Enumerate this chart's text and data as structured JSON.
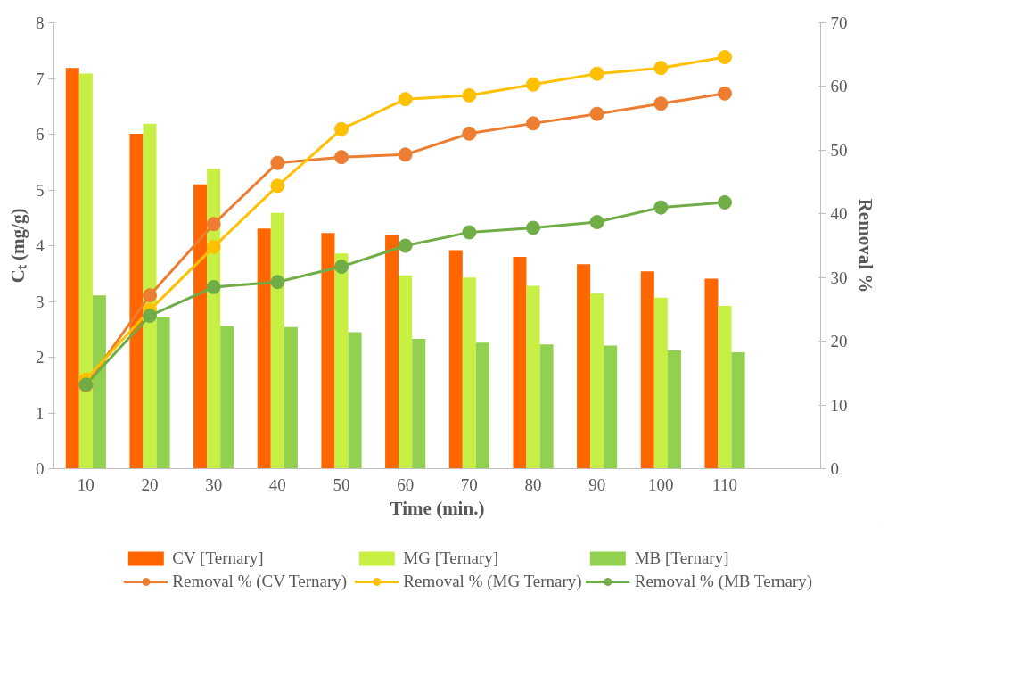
{
  "chart_data": {
    "type": "bar",
    "xlabel": "Time (min.)",
    "ylabel": "Cₜ (mg/g)",
    "y2label": "Removal %",
    "categories": [
      "10",
      "20",
      "30",
      "40",
      "50",
      "60",
      "70",
      "80",
      "90",
      "100",
      "110",
      null
    ],
    "ylim": [
      0,
      8
    ],
    "yticks": [
      0,
      1,
      2,
      3,
      4,
      5,
      6,
      7,
      8
    ],
    "y2lim": [
      0,
      70
    ],
    "y2ticks": [
      0,
      10,
      20,
      30,
      40,
      50,
      60,
      70
    ],
    "grid": false,
    "legend": "bottom",
    "marker": "circle",
    "series": [
      {
        "name": "CV [Ternary]",
        "color": "#ff6600",
        "values": [
          7.19,
          6.01,
          5.1,
          4.31,
          4.23,
          4.2,
          3.92,
          3.8,
          3.67,
          3.54,
          3.41,
          null
        ]
      },
      {
        "name": "MG [Ternary]",
        "color": "#c8ef44",
        "values": [
          7.09,
          6.19,
          5.38,
          4.59,
          3.86,
          3.47,
          3.43,
          3.28,
          3.15,
          3.07,
          2.92,
          null
        ]
      },
      {
        "name": "MB [Ternary]",
        "color": "#92d050",
        "values": [
          3.11,
          2.73,
          2.56,
          2.54,
          2.45,
          2.33,
          2.26,
          2.23,
          2.21,
          2.12,
          2.09,
          null
        ]
      },
      {
        "name": "Removal % (CV Ternary)",
        "type": "line",
        "axis": "y2",
        "color": "#ed7d31",
        "values": [
          13.1,
          27.2,
          38.4,
          48.0,
          48.9,
          49.3,
          52.6,
          54.2,
          55.7,
          57.3,
          58.9,
          null
        ]
      },
      {
        "name": "Removal % (MG Ternary)",
        "type": "line",
        "axis": "y2",
        "color": "#ffc000",
        "values": [
          14.0,
          24.9,
          34.8,
          44.4,
          53.3,
          58.0,
          58.6,
          60.3,
          62.0,
          62.9,
          64.6,
          null
        ]
      },
      {
        "name": "Removal % (MB Ternary)",
        "type": "line",
        "axis": "y2",
        "color": "#70ad47",
        "values": [
          13.2,
          24.0,
          28.5,
          29.3,
          31.7,
          35.0,
          37.1,
          37.8,
          38.7,
          41.0,
          41.8,
          null
        ]
      }
    ]
  }
}
